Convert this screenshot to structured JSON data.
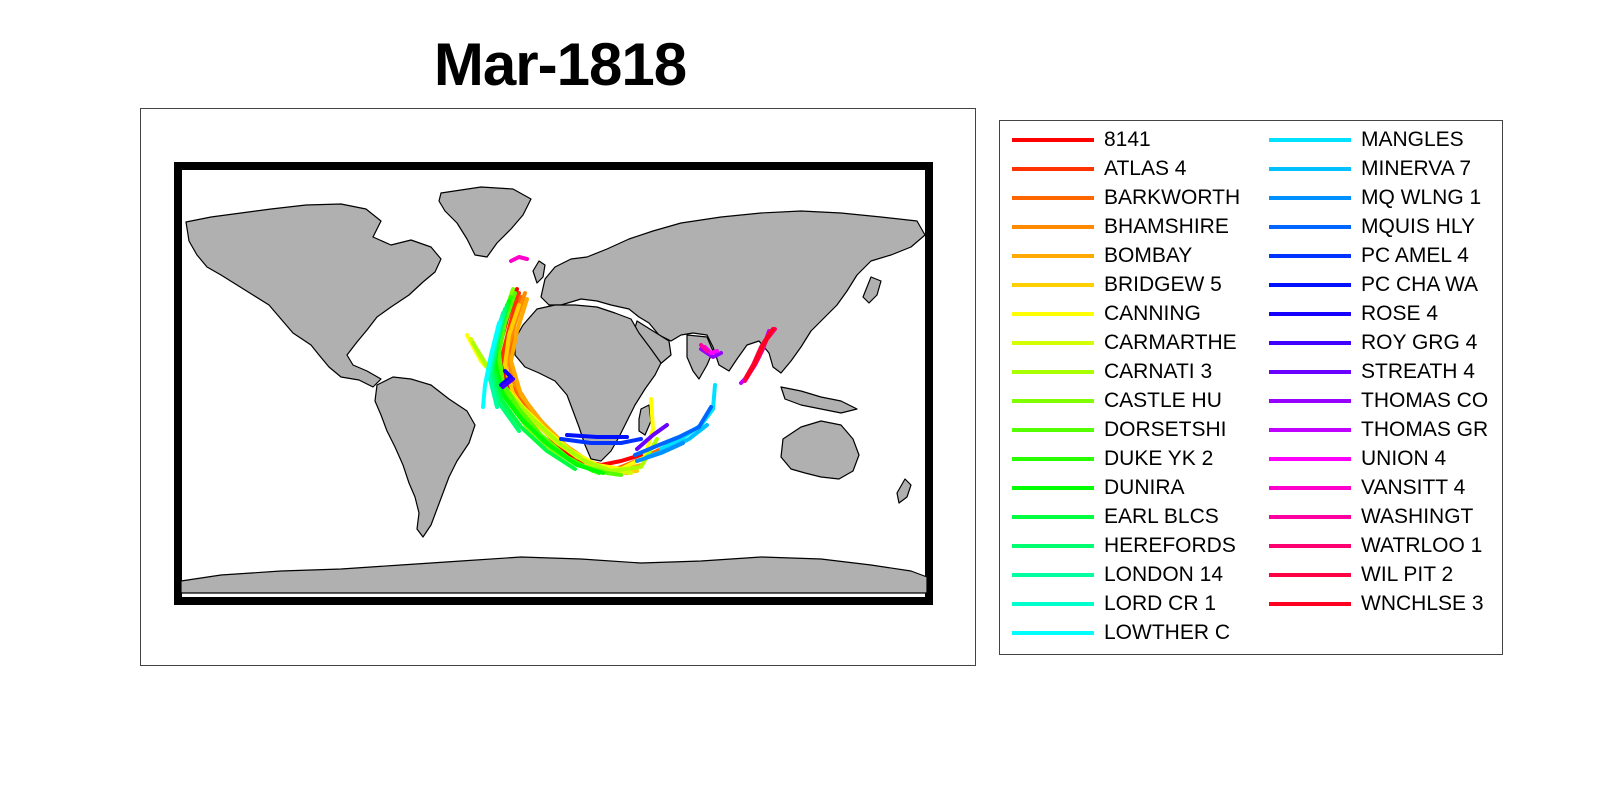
{
  "map": {
    "title": "Mar-1818",
    "land_color": "#b0b0b0",
    "frame_color": "#000000",
    "legend_columns": 2,
    "ships": [
      {
        "name": "8141",
        "color": "#ff0000"
      },
      {
        "name": "ATLAS 4",
        "color": "#ff3300"
      },
      {
        "name": "BARKWORTH",
        "color": "#ff6600"
      },
      {
        "name": "BHAMSHIRE",
        "color": "#ff8a00"
      },
      {
        "name": "BOMBAY",
        "color": "#ffaa00"
      },
      {
        "name": "BRIDGEW 5",
        "color": "#ffd000"
      },
      {
        "name": "CANNING",
        "color": "#ffff00"
      },
      {
        "name": "CARMARTHE",
        "color": "#d4ff00"
      },
      {
        "name": "CARNATI 3",
        "color": "#aaff00"
      },
      {
        "name": "CASTLE HU",
        "color": "#80ff00"
      },
      {
        "name": "DORSETSHI",
        "color": "#55ff00"
      },
      {
        "name": "DUKE YK 2",
        "color": "#2aff00"
      },
      {
        "name": "DUNIRA",
        "color": "#00ff00"
      },
      {
        "name": "EARL BLCS",
        "color": "#00ff40"
      },
      {
        "name": "HEREFORDS",
        "color": "#00ff70"
      },
      {
        "name": "LONDON 14",
        "color": "#00ffa0"
      },
      {
        "name": "LORD CR 1",
        "color": "#00ffcc"
      },
      {
        "name": "LOWTHER C",
        "color": "#00ffff"
      },
      {
        "name": "MANGLES",
        "color": "#00e0ff"
      },
      {
        "name": "MINERVA 7",
        "color": "#00c0ff"
      },
      {
        "name": "MQ WLNG 1",
        "color": "#0090ff"
      },
      {
        "name": "MQUIS HLY",
        "color": "#0066ff"
      },
      {
        "name": "PC AMEL 4",
        "color": "#0033ff"
      },
      {
        "name": "PC CHA WA",
        "color": "#0010ff"
      },
      {
        "name": "ROSE 4",
        "color": "#1500ff"
      },
      {
        "name": "ROY GRG 4",
        "color": "#4000ff"
      },
      {
        "name": "STREATH 4",
        "color": "#6a00ff"
      },
      {
        "name": "THOMAS CO",
        "color": "#9500ff"
      },
      {
        "name": "THOMAS GR",
        "color": "#c000ff"
      },
      {
        "name": "UNION 4",
        "color": "#ff00ff"
      },
      {
        "name": "VANSITT 4",
        "color": "#ff00cc"
      },
      {
        "name": "WASHINGT",
        "color": "#ff00a0"
      },
      {
        "name": "WATRLOO 1",
        "color": "#ff0070"
      },
      {
        "name": "WIL PIT 2",
        "color": "#ff0045"
      },
      {
        "name": "WNCHLSE 3",
        "color": "#ff0020"
      }
    ]
  }
}
